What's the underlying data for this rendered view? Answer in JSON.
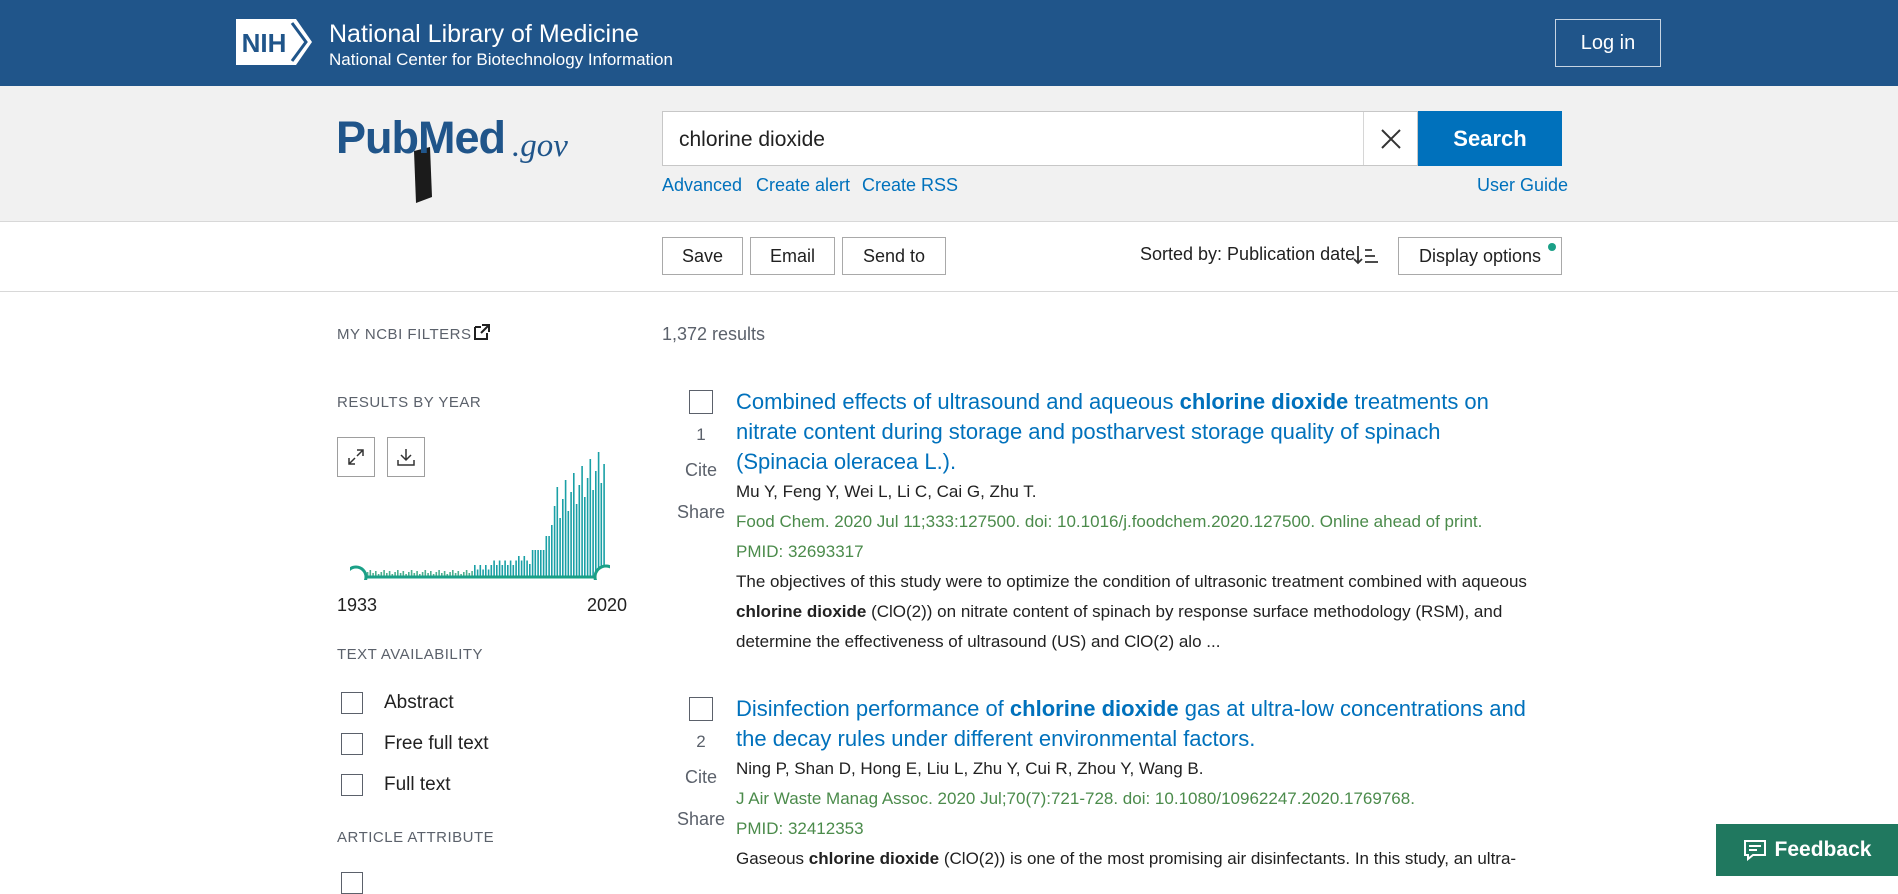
{
  "banner": {
    "logo_text": "NIH",
    "title": "National Library of Medicine",
    "subtitle": "National Center for Biotechnology Information",
    "login_label": "Log in"
  },
  "brand": {
    "pub": "Pub",
    "med": "Med",
    "gov": ".gov"
  },
  "search": {
    "query": "chlorine dioxide",
    "button_label": "Search",
    "links": [
      "Advanced",
      "Create alert",
      "Create RSS"
    ],
    "user_guide": "User Guide"
  },
  "actions": {
    "save": "Save",
    "email": "Email",
    "send_to": "Send to",
    "sorted_by": "Sorted by: Publication date",
    "display_options": "Display options"
  },
  "sidebar": {
    "my_filters": "MY NCBI FILTERS",
    "results_by_year": "RESULTS BY YEAR",
    "year_start": "1933",
    "year_end": "2020",
    "text_availability": "TEXT AVAILABILITY",
    "filters": [
      "Abstract",
      "Free full text",
      "Full text"
    ],
    "article_attribute": "ARTICLE ATTRIBUTE"
  },
  "results": {
    "count_text": "1,372 results",
    "cite_label": "Cite",
    "share_label": "Share",
    "items": [
      {
        "num": "1",
        "title_pre": "Combined effects of ultrasound and aqueous ",
        "title_hl": "chlorine dioxide",
        "title_post": " treatments on nitrate content during storage and postharvest storage quality of spinach (Spinacia oleracea L.).",
        "authors": "Mu Y, Feng Y, Wei L, Li C, Cai G, Zhu T.",
        "citation": "Food Chem. 2020 Jul 11;333:127500. doi: 10.1016/j.foodchem.2020.127500. Online ahead of print.",
        "pmid": "PMID: 32693317",
        "snippet_pre": "The objectives of this study were to optimize the condition of ultrasonic treatment combined with aqueous ",
        "snippet_hl": "chlorine dioxide",
        "snippet_post": " (ClO(2)) on nitrate content of spinach by response surface methodology (RSM), and determine the effectiveness of ultrasound (US) and ClO(2) alo ..."
      },
      {
        "num": "2",
        "title_pre": "Disinfection performance of ",
        "title_hl": "chlorine dioxide",
        "title_post": " gas at ultra-low concentrations and the decay rules under different environmental factors.",
        "authors": "Ning P, Shan D, Hong E, Liu L, Zhu Y, Cui R, Zhou Y, Wang B.",
        "citation": "J Air Waste Manag Assoc. 2020 Jul;70(7):721-728. doi: 10.1080/10962247.2020.1769768.",
        "pmid": "PMID: 32412353",
        "snippet_pre": "Gaseous ",
        "snippet_hl": "chlorine dioxide",
        "snippet_post": " (ClO(2)) is one of the most promising air disinfectants. In this study, an ultra-"
      }
    ]
  },
  "feedback_label": "Feedback",
  "colors": {
    "banner": "#20558a",
    "link": "#0071bc",
    "citation": "#4b8b4b",
    "accent": "#1aa087"
  }
}
